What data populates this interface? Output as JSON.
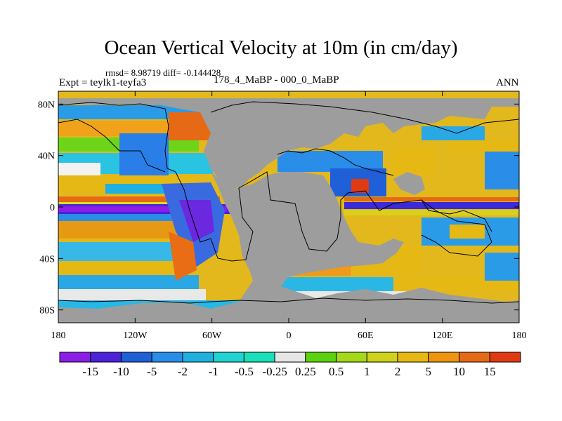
{
  "plot": {
    "title": "Ocean Vertical Velocity at 10m (in cm/day)",
    "stats_line": "rmsd= 8.98719 diff= -0.144428",
    "experiment_label": "Expt = teylk1-teyfa3",
    "subtitle": "178_4_MaBP - 000_0_MaBP",
    "season": "ANN"
  },
  "axes": {
    "x_ticks": [
      "180",
      "120W",
      "60W",
      "0",
      "60E",
      "120E",
      "180"
    ],
    "y_ticks": [
      "80N",
      "40N",
      "0",
      "40S",
      "80S"
    ]
  },
  "colorbar": {
    "colors": [
      "#8a1ee6",
      "#4b22d8",
      "#1f5fd7",
      "#2a8ee8",
      "#1fb0e0",
      "#20d2d0",
      "#19e0b6",
      "#e6e6e6",
      "#5cd20f",
      "#a4d81a",
      "#cdd21c",
      "#e6b814",
      "#ee9410",
      "#e66a16",
      "#e03a12"
    ],
    "labels": [
      "-15",
      "-10",
      "-5",
      "-2",
      "-1",
      "-0.5",
      "-0.25",
      "0.25",
      "0.5",
      "1",
      "2",
      "5",
      "10",
      "15"
    ]
  },
  "map_colors": {
    "land": "#9d9d9d",
    "coast": "#000000"
  }
}
